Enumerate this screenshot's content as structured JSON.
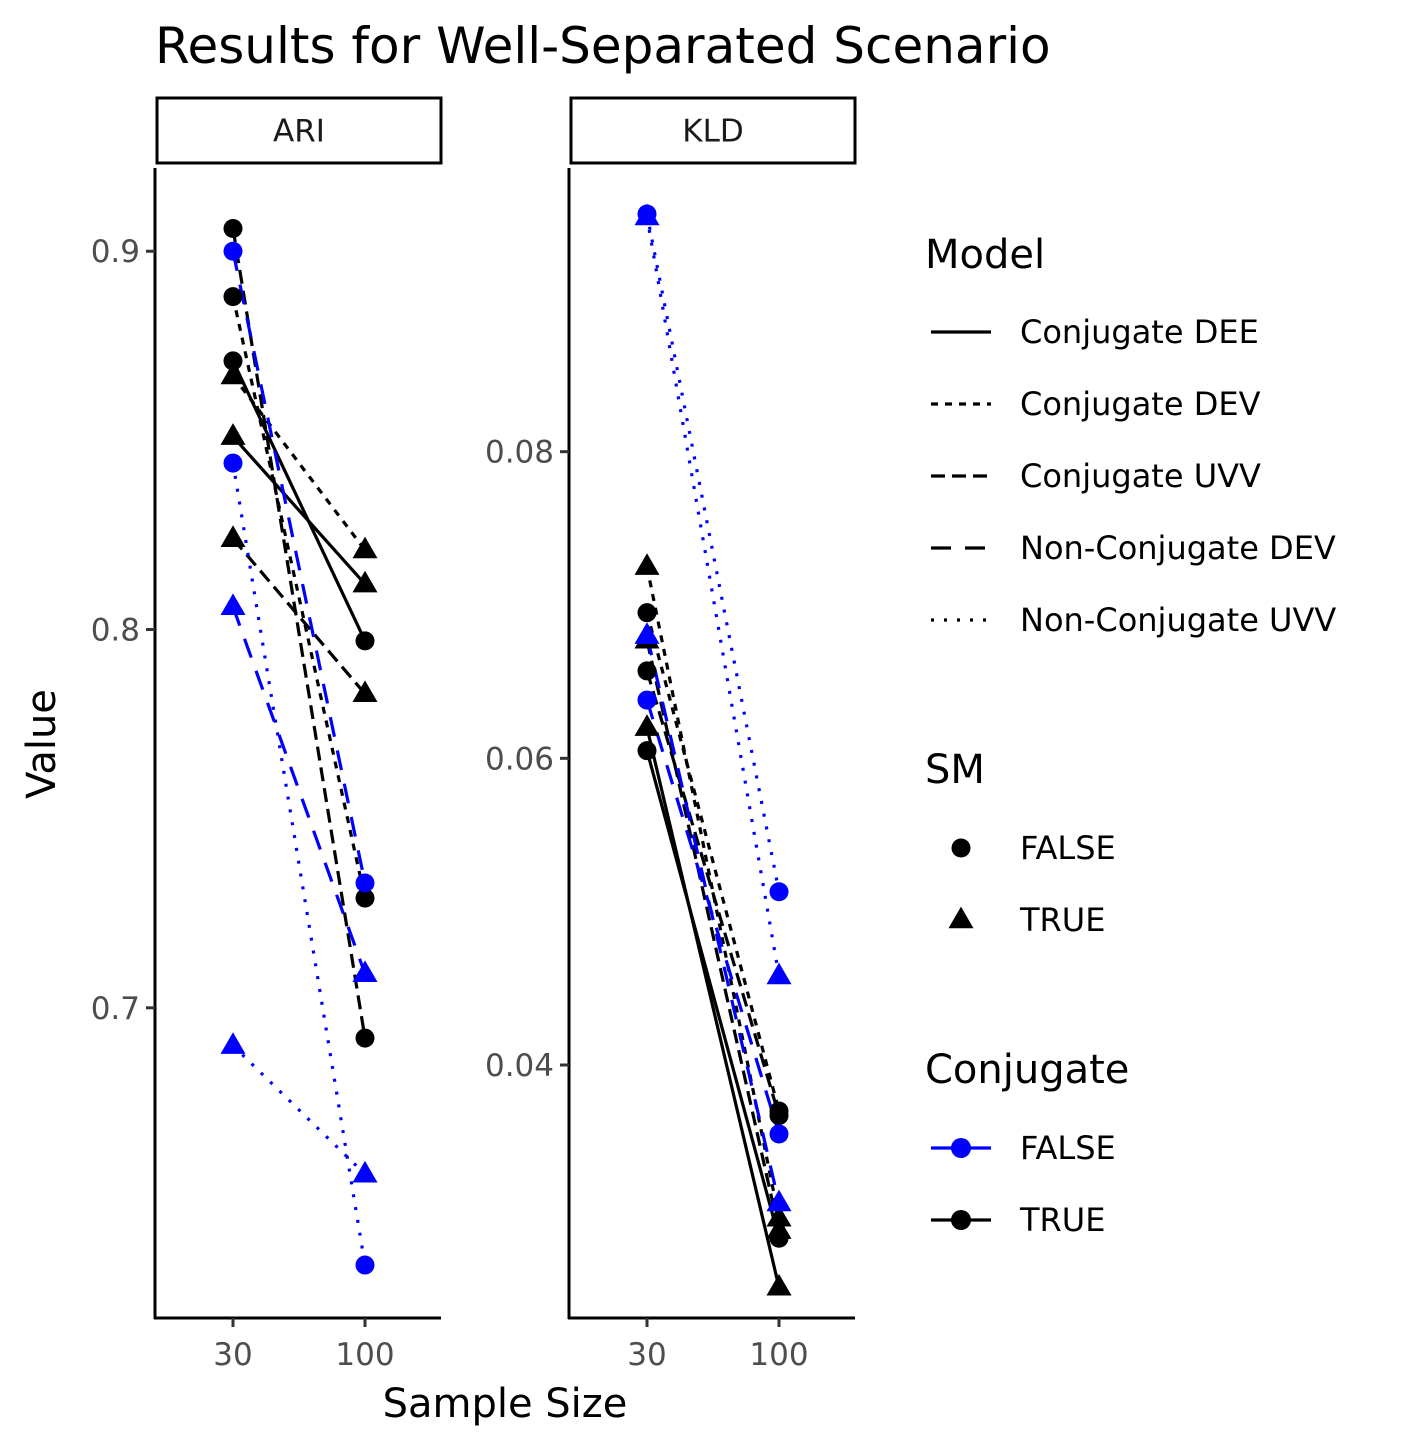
{
  "chart_data": {
    "type": "line",
    "title": "Results for Well-Separated Scenario",
    "xlabel": "Sample Size",
    "ylabel": "Value",
    "x_categories": [
      "30",
      "100"
    ],
    "colors": {
      "FALSE": "#0000ff",
      "TRUE": "#000000"
    },
    "linetypes": {
      "Conjugate DEE": "solid",
      "Conjugate DEV": "dotted-short",
      "Conjugate UVV": "dashed-short",
      "Non-Conjugate DEV": "dashed-long",
      "Non-Conjugate UVV": "dotted"
    },
    "legend": {
      "model": {
        "title": "Model",
        "items": [
          "Conjugate DEE",
          "Conjugate DEV",
          "Conjugate UVV",
          "Non-Conjugate DEV",
          "Non-Conjugate UVV"
        ]
      },
      "sm": {
        "title": "SM",
        "items": [
          "FALSE",
          "TRUE"
        ]
      },
      "conjugate": {
        "title": "Conjugate",
        "items": [
          "FALSE",
          "TRUE"
        ]
      }
    },
    "panels": [
      {
        "name": "ARI",
        "ylim": [
          0.618,
          0.922
        ],
        "yticks": [
          0.7,
          0.8,
          0.9
        ],
        "ytick_labels": [
          "0.7",
          "0.8",
          "0.9"
        ],
        "series": [
          {
            "model": "Conjugate DEE",
            "sm": "FALSE",
            "conjugate": "TRUE",
            "values": [
              0.871,
              0.797
            ]
          },
          {
            "model": "Conjugate DEE",
            "sm": "TRUE",
            "conjugate": "TRUE",
            "values": [
              0.851,
              0.812
            ]
          },
          {
            "model": "Conjugate DEV",
            "sm": "FALSE",
            "conjugate": "TRUE",
            "values": [
              0.888,
              0.729
            ]
          },
          {
            "model": "Conjugate DEV",
            "sm": "TRUE",
            "conjugate": "TRUE",
            "values": [
              0.867,
              0.821
            ]
          },
          {
            "model": "Conjugate UVV",
            "sm": "FALSE",
            "conjugate": "TRUE",
            "values": [
              0.906,
              0.692
            ]
          },
          {
            "model": "Conjugate UVV",
            "sm": "TRUE",
            "conjugate": "TRUE",
            "values": [
              0.824,
              0.783
            ]
          },
          {
            "model": "Non-Conjugate DEV",
            "sm": "FALSE",
            "conjugate": "FALSE",
            "values": [
              0.9,
              0.733
            ]
          },
          {
            "model": "Non-Conjugate DEV",
            "sm": "TRUE",
            "conjugate": "FALSE",
            "values": [
              0.806,
              0.709
            ]
          },
          {
            "model": "Non-Conjugate UVV",
            "sm": "FALSE",
            "conjugate": "FALSE",
            "values": [
              0.844,
              0.632
            ]
          },
          {
            "model": "Non-Conjugate UVV",
            "sm": "TRUE",
            "conjugate": "FALSE",
            "values": [
              0.69,
              0.656
            ]
          }
        ]
      },
      {
        "name": "KLD",
        "ylim": [
          0.0235,
          0.0985
        ],
        "yticks": [
          0.04,
          0.06,
          0.08
        ],
        "ytick_labels": [
          "0.04",
          "0.06",
          "0.08"
        ],
        "series": [
          {
            "model": "Conjugate DEE",
            "sm": "FALSE",
            "conjugate": "TRUE",
            "values": [
              0.0605,
              0.0287
            ]
          },
          {
            "model": "Conjugate DEE",
            "sm": "TRUE",
            "conjugate": "TRUE",
            "values": [
              0.062,
              0.0255
            ]
          },
          {
            "model": "Conjugate DEV",
            "sm": "FALSE",
            "conjugate": "TRUE",
            "values": [
              0.0695,
              0.037
            ]
          },
          {
            "model": "Conjugate DEV",
            "sm": "TRUE",
            "conjugate": "TRUE",
            "values": [
              0.0725,
              0.03
            ]
          },
          {
            "model": "Conjugate UVV",
            "sm": "FALSE",
            "conjugate": "TRUE",
            "values": [
              0.0657,
              0.0367
            ]
          },
          {
            "model": "Conjugate UVV",
            "sm": "TRUE",
            "conjugate": "TRUE",
            "values": [
              0.0677,
              0.0292
            ]
          },
          {
            "model": "Non-Conjugate DEV",
            "sm": "FALSE",
            "conjugate": "FALSE",
            "values": [
              0.0638,
              0.0355
            ]
          },
          {
            "model": "Non-Conjugate DEV",
            "sm": "TRUE",
            "conjugate": "FALSE",
            "values": [
              0.068,
              0.031
            ]
          },
          {
            "model": "Non-Conjugate UVV",
            "sm": "FALSE",
            "conjugate": "FALSE",
            "values": [
              0.0955,
              0.0513
            ]
          },
          {
            "model": "Non-Conjugate UVV",
            "sm": "TRUE",
            "conjugate": "FALSE",
            "values": [
              0.0953,
              0.0458
            ]
          }
        ]
      }
    ]
  }
}
